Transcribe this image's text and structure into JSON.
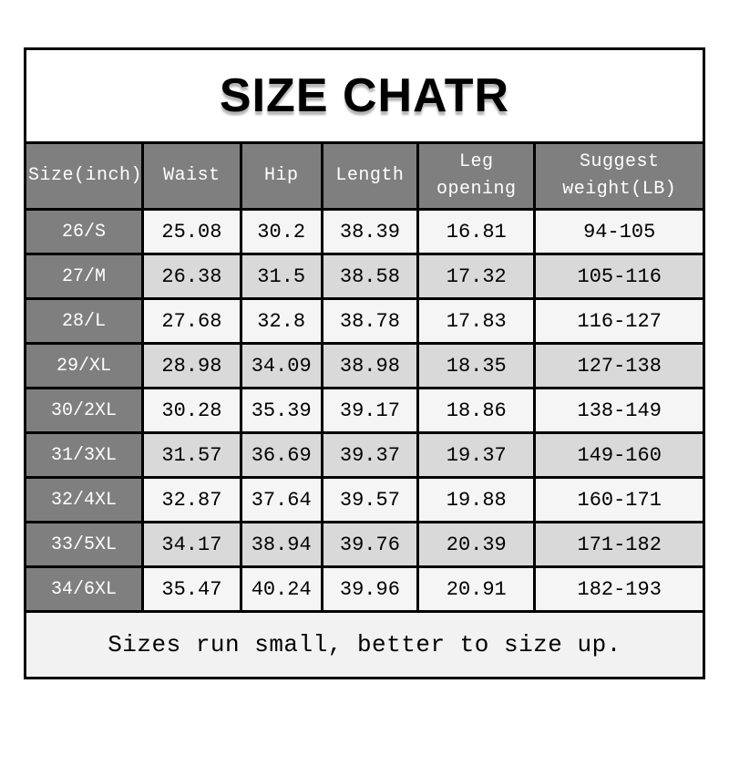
{
  "title": "SIZE CHATR",
  "table": {
    "headers": [
      "Size(inch)",
      "Waist",
      "Hip",
      "Length",
      "Leg opening",
      "Suggest weight(LB)"
    ],
    "rows": [
      [
        "26/S",
        "25.08",
        "30.2",
        "38.39",
        "16.81",
        "94-105"
      ],
      [
        "27/M",
        "26.38",
        "31.5",
        "38.58",
        "17.32",
        "105-116"
      ],
      [
        "28/L",
        "27.68",
        "32.8",
        "38.78",
        "17.83",
        "116-127"
      ],
      [
        "29/XL",
        "28.98",
        "34.09",
        "38.98",
        "18.35",
        "127-138"
      ],
      [
        "30/2XL",
        "30.28",
        "35.39",
        "39.17",
        "18.86",
        "138-149"
      ],
      [
        "31/3XL",
        "31.57",
        "36.69",
        "39.37",
        "19.37",
        "149-160"
      ],
      [
        "32/4XL",
        "32.87",
        "37.64",
        "39.57",
        "19.88",
        "160-171"
      ],
      [
        "33/5XL",
        "34.17",
        "38.94",
        "39.76",
        "20.39",
        "171-182"
      ],
      [
        "34/6XL",
        "35.47",
        "40.24",
        "39.96",
        "20.91",
        "182-193"
      ]
    ]
  },
  "footer": {
    "note": "Sizes run small, better to size up."
  },
  "colors": {
    "header_bg": "#7f7f7f",
    "row_light": "#f5f5f5",
    "row_dark": "#d9d9d9",
    "footer_bg": "#f2f2f2",
    "border": "#000000",
    "title_shadow": "#b5b5b5"
  }
}
